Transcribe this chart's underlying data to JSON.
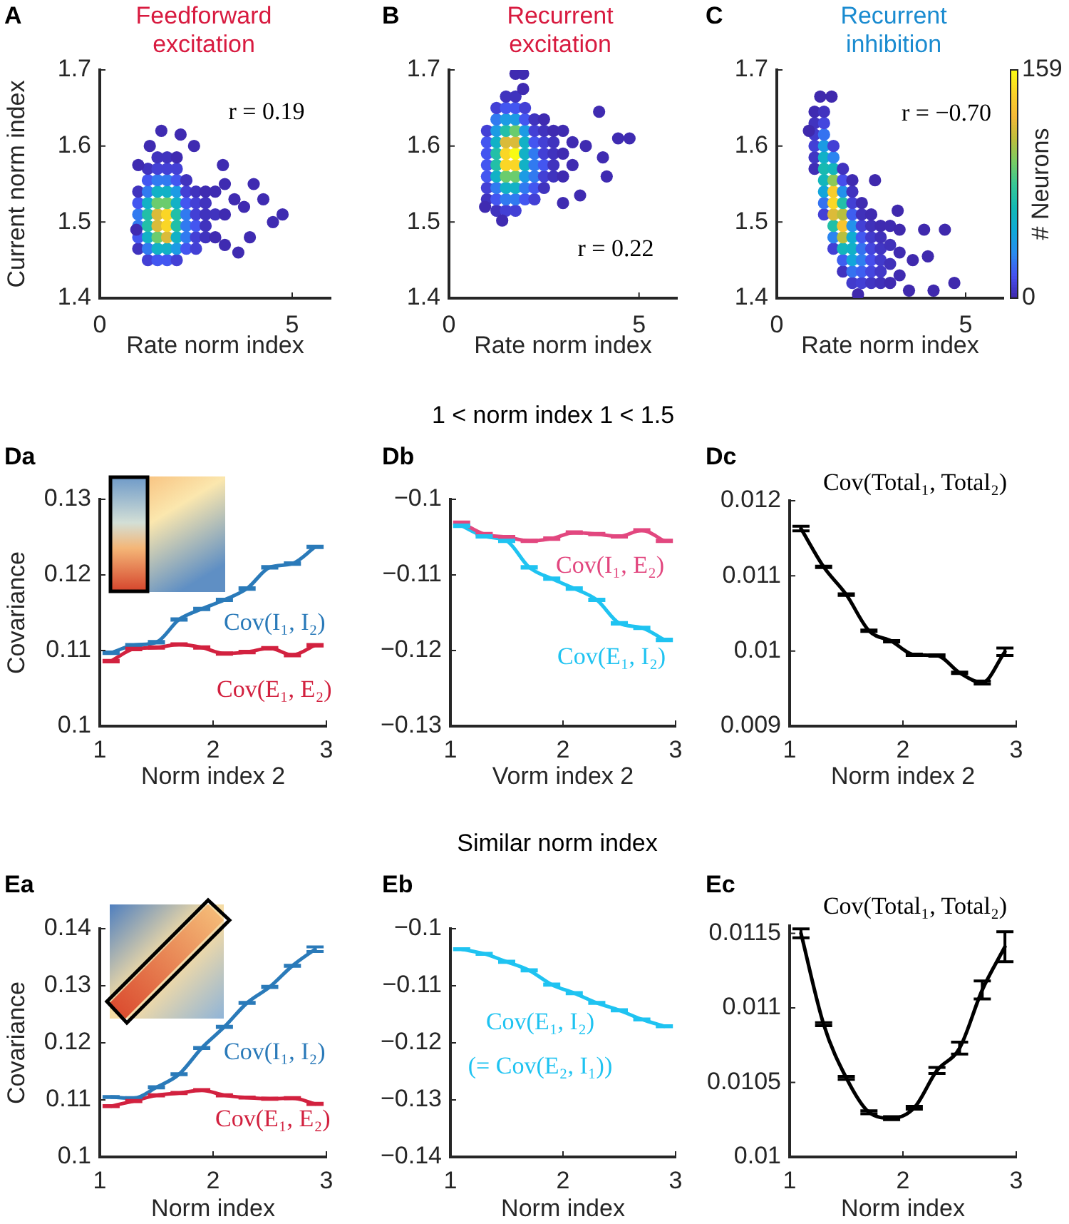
{
  "chart_data": [
    {
      "type": "scatter",
      "title": "Feedforward excitation",
      "xlabel": "Rate norm index",
      "ylabel": "Current norm index",
      "annotations": [
        "A",
        "r = 0.19"
      ],
      "marker": "circle",
      "x": [
        1,
        1,
        1,
        1,
        1,
        1,
        1.25,
        1.25,
        1.25,
        1.25,
        1.25,
        1.25,
        1.25,
        1.25,
        1.25,
        1.5,
        1.5,
        1.5,
        1.5,
        1.5,
        1.5,
        1.5,
        1.5,
        1.5,
        1.5,
        1.75,
        1.75,
        1.75,
        1.75,
        1.75,
        1.75,
        1.75,
        1.75,
        1.75,
        1.75,
        2,
        2,
        2,
        2,
        2,
        2,
        2,
        2,
        2,
        2,
        2.25,
        2.25,
        2.25,
        2.25,
        2.25,
        2.25,
        2.25,
        2.5,
        2.5,
        2.5,
        2.5,
        2.5,
        2.5,
        2.75,
        2.75,
        2.75,
        2.75,
        2.75,
        3,
        3,
        3,
        3.25,
        3.25,
        3.25,
        3.5,
        3.75,
        4,
        4.25,
        4.5,
        4.75,
        3.9,
        3.6,
        1.6,
        2.1,
        2.45,
        3.2,
        1,
        0.95,
        1.3
      ],
      "values": [
        1.465,
        1.48,
        1.495,
        1.51,
        1.525,
        1.54,
        1.45,
        1.465,
        1.48,
        1.495,
        1.51,
        1.525,
        1.54,
        1.555,
        1.57,
        1.45,
        1.465,
        1.48,
        1.495,
        1.51,
        1.525,
        1.54,
        1.555,
        1.57,
        1.585,
        1.45,
        1.465,
        1.48,
        1.495,
        1.51,
        1.525,
        1.54,
        1.555,
        1.57,
        1.585,
        1.45,
        1.465,
        1.48,
        1.495,
        1.51,
        1.525,
        1.54,
        1.555,
        1.57,
        1.585,
        1.465,
        1.48,
        1.495,
        1.51,
        1.525,
        1.54,
        1.555,
        1.465,
        1.48,
        1.495,
        1.51,
        1.525,
        1.54,
        1.48,
        1.495,
        1.51,
        1.525,
        1.54,
        1.48,
        1.51,
        1.54,
        1.47,
        1.51,
        1.55,
        1.53,
        1.52,
        1.55,
        1.53,
        1.5,
        1.51,
        1.48,
        1.46,
        1.62,
        1.615,
        1.6,
        1.575,
        1.575,
        1.49,
        1.6
      ],
      "colors": [
        "#4033be",
        "#4356f0",
        "#317af0",
        "#317af0",
        "#4356f0",
        "#4033be",
        "#4340d5",
        "#317af0",
        "#12b1c6",
        "#22bfa8",
        "#22bfa8",
        "#12b1c6",
        "#317af0",
        "#4356f0",
        "#4033be",
        "#4356f0",
        "#12b1c6",
        "#6bcc6e",
        "#dabb3a",
        "#dabb3a",
        "#6bcc6e",
        "#12b1c6",
        "#317af0",
        "#4340d5",
        "#4033be",
        "#4356f0",
        "#12b1c6",
        "#dabb3a",
        "#fad626",
        "#fad626",
        "#6bcc6e",
        "#12b1c6",
        "#317af0",
        "#4340d5",
        "#4033be",
        "#4340d5",
        "#1c9be4",
        "#12b1c6",
        "#22bfa8",
        "#22bfa8",
        "#12b1c6",
        "#1c9be4",
        "#4356f0",
        "#4340d5",
        "#3f2bb1",
        "#4356f0",
        "#317af0",
        "#317af0",
        "#317af0",
        "#4356f0",
        "#4340d5",
        "#4033be",
        "#4340d5",
        "#4340d5",
        "#4356f0",
        "#4340d5",
        "#4340d5",
        "#4033be",
        "#4033be",
        "#4033be",
        "#4033be",
        "#4033be",
        "#3f2bb1",
        "#3f2bb1",
        "#4033be",
        "#3f2bb1",
        "#3f2bb1",
        "#3f2bb1",
        "#3f2bb1",
        "#3f2bb1",
        "#3f2bb1",
        "#3f2bb1",
        "#3f2bb1",
        "#3f2bb1",
        "#3f2bb1",
        "#3f2bb1",
        "#3f2bb1",
        "#3f2bb1",
        "#3f2bb1",
        "#3f2bb1",
        "#3f2bb1",
        "#3f2bb1",
        "#3f2bb1",
        "#3f2bb1"
      ],
      "xlim": [
        0,
        6
      ],
      "xticks": [
        0,
        5
      ],
      "ylim": [
        1.4,
        1.7
      ],
      "yticks": [
        1.4,
        1.5,
        1.6,
        1.7
      ]
    },
    {
      "type": "scatter",
      "title": "Recurrent excitation",
      "xlabel": "Rate norm index",
      "annotations": [
        "B",
        "r = 0.22"
      ],
      "marker": "circle",
      "x": [
        1,
        1,
        1,
        1,
        1,
        1,
        1,
        1.25,
        1.25,
        1.25,
        1.25,
        1.25,
        1.25,
        1.25,
        1.25,
        1.25,
        1.25,
        1.5,
        1.5,
        1.5,
        1.5,
        1.5,
        1.5,
        1.5,
        1.5,
        1.5,
        1.5,
        1.5,
        1.75,
        1.75,
        1.75,
        1.75,
        1.75,
        1.75,
        1.75,
        1.75,
        1.75,
        1.75,
        1.75,
        2,
        2,
        2,
        2,
        2,
        2,
        2,
        2,
        2,
        2.25,
        2.25,
        2.25,
        2.25,
        2.25,
        2.25,
        2.25,
        2.25,
        2.5,
        2.5,
        2.5,
        2.5,
        2.5,
        2.5,
        2.5,
        2.75,
        2.75,
        2.75,
        2.75,
        2.75,
        3,
        3,
        3,
        3.25,
        3.25,
        1.75,
        1.95,
        1.95,
        3.95,
        4.45,
        4.75,
        4.05,
        4.15,
        3.45,
        3,
        0.95,
        1.4,
        3.6
      ],
      "values": [
        1.53,
        1.545,
        1.56,
        1.575,
        1.59,
        1.605,
        1.62,
        1.515,
        1.53,
        1.545,
        1.56,
        1.575,
        1.59,
        1.605,
        1.62,
        1.635,
        1.65,
        1.515,
        1.53,
        1.545,
        1.56,
        1.575,
        1.59,
        1.605,
        1.62,
        1.635,
        1.65,
        1.665,
        1.515,
        1.53,
        1.545,
        1.56,
        1.575,
        1.59,
        1.605,
        1.62,
        1.635,
        1.65,
        1.665,
        1.53,
        1.545,
        1.56,
        1.575,
        1.59,
        1.605,
        1.62,
        1.635,
        1.65,
        1.53,
        1.545,
        1.56,
        1.575,
        1.59,
        1.605,
        1.62,
        1.635,
        1.545,
        1.56,
        1.575,
        1.59,
        1.605,
        1.62,
        1.635,
        1.56,
        1.575,
        1.59,
        1.605,
        1.62,
        1.56,
        1.59,
        1.62,
        1.575,
        1.605,
        1.695,
        1.695,
        1.675,
        1.645,
        1.61,
        1.61,
        1.585,
        1.56,
        1.535,
        1.525,
        1.52,
        1.502,
        1.6
      ],
      "colors": [
        "#4033be",
        "#4340d5",
        "#4356f0",
        "#4356f0",
        "#4356f0",
        "#4356f0",
        "#4340d5",
        "#4033be",
        "#4356f0",
        "#317af0",
        "#12b1c6",
        "#22bfa8",
        "#22bfa8",
        "#12b1c6",
        "#1c9be4",
        "#317af0",
        "#4340d5",
        "#4340d5",
        "#317af0",
        "#12b1c6",
        "#6bcc6e",
        "#fad626",
        "#fad626",
        "#dabb3a",
        "#22bfa8",
        "#1c9be4",
        "#4356f0",
        "#4033be",
        "#4340d5",
        "#317af0",
        "#12b1c6",
        "#6bcc6e",
        "#fad626",
        "#f9fb14",
        "#dabb3a",
        "#6bcc6e",
        "#1c9be4",
        "#4356f0",
        "#4033be",
        "#4356f0",
        "#317af0",
        "#1c9be4",
        "#12b1c6",
        "#12b1c6",
        "#12b1c6",
        "#1c9be4",
        "#4356f0",
        "#4340d5",
        "#4340d5",
        "#4356f0",
        "#317af0",
        "#317af0",
        "#317af0",
        "#4356f0",
        "#4340d5",
        "#4033be",
        "#4033be",
        "#4340d5",
        "#4356f0",
        "#4340d5",
        "#4340d5",
        "#4033be",
        "#3f2bb1",
        "#4033be",
        "#4033be",
        "#4033be",
        "#4033be",
        "#3f2bb1",
        "#3f2bb1",
        "#3f2bb1",
        "#3f2bb1",
        "#3f2bb1",
        "#3f2bb1",
        "#3f2bb1",
        "#3f2bb1",
        "#3f2bb1",
        "#3f2bb1",
        "#3f2bb1",
        "#3f2bb1",
        "#3f2bb1",
        "#3f2bb1",
        "#3f2bb1",
        "#3f2bb1",
        "#3f2bb1",
        "#3f2bb1",
        "#3f2bb1"
      ],
      "xlim": [
        0,
        6
      ],
      "xticks": [
        0,
        5
      ],
      "ylim": [
        1.4,
        1.7
      ],
      "yticks": [
        1.4,
        1.5,
        1.6,
        1.7
      ]
    },
    {
      "type": "scatter",
      "title": "Recurrent inhibition",
      "xlabel": "Rate norm index",
      "annotations": [
        "C",
        "r = −0.70"
      ],
      "marker": "circle",
      "clim": [
        0,
        159
      ],
      "cticks": [
        0,
        159
      ],
      "clabel": "# Neurons",
      "x": [
        1,
        1,
        1,
        1,
        1,
        1,
        1.25,
        1.25,
        1.25,
        1.25,
        1.25,
        1.25,
        1.25,
        1.25,
        1.25,
        1.25,
        1.5,
        1.5,
        1.5,
        1.5,
        1.5,
        1.5,
        1.5,
        1.5,
        1.5,
        1.5,
        1.75,
        1.75,
        1.75,
        1.75,
        1.75,
        1.75,
        1.75,
        1.75,
        1.75,
        1.75,
        2,
        2,
        2,
        2,
        2,
        2,
        2,
        2,
        2,
        2,
        2.25,
        2.25,
        2.25,
        2.25,
        2.25,
        2.25,
        2.25,
        2.25,
        2.5,
        2.5,
        2.5,
        2.5,
        2.5,
        2.5,
        2.5,
        2.75,
        2.75,
        2.75,
        2.75,
        2.75,
        2.75,
        3,
        3,
        3,
        3,
        3.25,
        3.25,
        3.25,
        1.15,
        1.45,
        0.85,
        2.6,
        3.2,
        3.9,
        4.45,
        4.7,
        4.15,
        2.15,
        3.6,
        4,
        3.5
      ],
      "values": [
        1.57,
        1.585,
        1.6,
        1.615,
        1.63,
        1.645,
        1.51,
        1.525,
        1.54,
        1.555,
        1.57,
        1.585,
        1.6,
        1.615,
        1.63,
        1.645,
        1.465,
        1.48,
        1.495,
        1.51,
        1.525,
        1.54,
        1.555,
        1.57,
        1.585,
        1.6,
        1.435,
        1.45,
        1.465,
        1.48,
        1.495,
        1.51,
        1.525,
        1.54,
        1.555,
        1.57,
        1.42,
        1.435,
        1.45,
        1.465,
        1.48,
        1.495,
        1.51,
        1.525,
        1.54,
        1.555,
        1.42,
        1.435,
        1.45,
        1.465,
        1.48,
        1.495,
        1.51,
        1.525,
        1.42,
        1.435,
        1.45,
        1.465,
        1.48,
        1.495,
        1.51,
        1.42,
        1.435,
        1.45,
        1.465,
        1.48,
        1.495,
        1.42,
        1.445,
        1.47,
        1.495,
        1.43,
        1.46,
        1.49,
        1.665,
        1.665,
        1.62,
        1.555,
        1.515,
        1.49,
        1.49,
        1.42,
        1.41,
        1.405,
        1.45,
        1.455,
        1.41
      ],
      "cvalues": [
        3,
        6,
        10,
        8,
        5,
        2,
        10,
        25,
        45,
        60,
        65,
        55,
        40,
        25,
        12,
        5,
        10,
        30,
        70,
        120,
        145,
        140,
        100,
        60,
        30,
        10,
        5,
        20,
        60,
        110,
        135,
        110,
        70,
        35,
        15,
        5,
        8,
        25,
        45,
        55,
        50,
        35,
        20,
        10,
        5,
        2,
        10,
        20,
        28,
        25,
        18,
        10,
        4,
        2,
        6,
        12,
        15,
        12,
        8,
        4,
        2,
        4,
        7,
        8,
        6,
        4,
        2,
        2,
        4,
        4,
        2,
        2,
        2,
        1,
        1,
        1,
        1,
        1,
        1,
        1,
        1,
        1,
        1,
        1,
        1,
        1,
        1
      ],
      "xlim": [
        0,
        6
      ],
      "xticks": [
        0,
        5
      ],
      "ylim": [
        1.4,
        1.7
      ],
      "yticks": [
        1.4,
        1.5,
        1.6,
        1.7
      ]
    },
    {
      "type": "line",
      "xlabel": "Norm index 2",
      "ylabel": "Covariance",
      "annotations": [
        "Da"
      ],
      "x": [
        1.1,
        1.3,
        1.5,
        1.7,
        1.9,
        2.1,
        2.3,
        2.5,
        2.7,
        2.9
      ],
      "series": [
        {
          "name": "Cov(I₁, I₂)",
          "color": "#2a7ab9",
          "values": [
            0.1097,
            0.1107,
            0.1111,
            0.1141,
            0.1155,
            0.1167,
            0.1182,
            0.121,
            0.1215,
            0.1237
          ],
          "errors": [
            0.0001,
            0.0001,
            0.0001,
            0.0001,
            0.0001,
            0.0001,
            0.0001,
            0.0001,
            0.0001,
            0.0001
          ]
        },
        {
          "name": "Cov(E₁, E₂)",
          "color": "#d2213f",
          "values": [
            0.1086,
            0.1102,
            0.1104,
            0.1108,
            0.1104,
            0.1096,
            0.1098,
            0.1103,
            0.1094,
            0.1107
          ],
          "errors": [
            0.0001,
            0.0001,
            0.0001,
            0.0001,
            0.0001,
            0.0001,
            0.0001,
            0.0001,
            0.0001,
            0.0001
          ]
        }
      ],
      "xlim": [
        1,
        3
      ],
      "xticks": [
        1,
        2,
        3
      ],
      "ylim": [
        0.1,
        0.13
      ],
      "yticks": [
        0.1,
        0.11,
        0.12,
        0.13
      ]
    },
    {
      "type": "line",
      "title": "1 < norm index 1 < 1.5",
      "xlabel": "Vorm index 2",
      "annotations": [
        "Db"
      ],
      "x": [
        1.1,
        1.3,
        1.5,
        1.7,
        1.9,
        2.1,
        2.3,
        2.5,
        2.7,
        2.9
      ],
      "series": [
        {
          "name": "Cov(I₁, E₂)",
          "color": "#e2477f",
          "values": [
            -0.1031,
            -0.1046,
            -0.105,
            -0.1055,
            -0.1052,
            -0.1044,
            -0.1046,
            -0.1049,
            -0.1041,
            -0.1055
          ],
          "errors": [
            0.0001,
            0.0001,
            0.0001,
            0.0001,
            0.0001,
            0.0001,
            0.0001,
            0.0001,
            0.0001,
            0.0001
          ]
        },
        {
          "name": "Cov(E₁, I₂)",
          "color": "#1fc3f1",
          "values": [
            -0.1035,
            -0.1049,
            -0.1055,
            -0.109,
            -0.1105,
            -0.1118,
            -0.1133,
            -0.1164,
            -0.117,
            -0.1186
          ],
          "errors": [
            0.0001,
            0.0001,
            0.0001,
            0.0001,
            0.0001,
            0.0001,
            0.0001,
            0.0001,
            0.0001,
            0.0001
          ]
        }
      ],
      "xlim": [
        1,
        3
      ],
      "xticks": [
        1,
        2,
        3
      ],
      "ylim": [
        -0.13,
        -0.1
      ],
      "yticks": [
        {
          "value": -0.13,
          "label": "−0.13"
        },
        {
          "value": -0.12,
          "label": "−0.12"
        },
        {
          "value": -0.11,
          "label": "−0.11"
        },
        {
          "value": -0.1,
          "label": "−0.1"
        }
      ]
    },
    {
      "type": "line",
      "xlabel": "Norm index 2",
      "annotations": [
        "Dc"
      ],
      "x": [
        1.1,
        1.3,
        1.5,
        1.7,
        1.9,
        2.1,
        2.3,
        2.5,
        2.7,
        2.9
      ],
      "series": [
        {
          "name": "Cov(Total₁, Total₂)",
          "color": "#000000",
          "values": [
            0.01163,
            0.01112,
            0.01075,
            0.01027,
            0.01013,
            0.00995,
            0.00994,
            0.00971,
            0.00958,
            0.00999
          ],
          "errors": [
            3e-05,
            1e-05,
            1e-05,
            1e-05,
            1e-05,
            1e-05,
            1e-05,
            1e-05,
            2e-05,
            5e-05
          ]
        }
      ],
      "xlim": [
        1,
        3
      ],
      "xticks": [
        1,
        2,
        3
      ],
      "ylim": [
        0.009,
        0.012
      ],
      "yticks": [
        0.009,
        0.01,
        0.011,
        0.012
      ]
    },
    {
      "type": "line",
      "xlabel": "Norm index",
      "ylabel": "Covariance",
      "annotations": [
        "Ea"
      ],
      "x": [
        1.1,
        1.3,
        1.5,
        1.7,
        1.9,
        2.1,
        2.3,
        2.5,
        2.7,
        2.9
      ],
      "series": [
        {
          "name": "Cov(I₁, I₂)",
          "color": "#2a7ab9",
          "values": [
            0.1105,
            0.1103,
            0.1122,
            0.1145,
            0.1191,
            0.1228,
            0.127,
            0.1298,
            0.1335,
            0.1364
          ],
          "errors": [
            0.0001,
            0.0001,
            0.0001,
            0.0001,
            0.0001,
            0.0001,
            0.0001,
            0.0001,
            0.0001,
            0.0004
          ]
        },
        {
          "name": "Cov(E₁, E₂)",
          "color": "#d2213f",
          "values": [
            0.1089,
            0.1098,
            0.1108,
            0.1112,
            0.1117,
            0.1108,
            0.1104,
            0.1102,
            0.1103,
            0.1093
          ],
          "errors": [
            0.0001,
            0.0001,
            0.0001,
            0.0001,
            0.0001,
            0.0001,
            0.0001,
            0.0001,
            0.0001,
            0.0001
          ]
        }
      ],
      "xlim": [
        1,
        3
      ],
      "xticks": [
        1,
        2,
        3
      ],
      "ylim": [
        0.1,
        0.14
      ],
      "yticks": [
        0.1,
        0.11,
        0.12,
        0.13,
        0.14
      ]
    },
    {
      "type": "line",
      "title": "Similar norm index",
      "xlabel": "Norm index",
      "annotations": [
        "Eb",
        "(= Cov(E₂, I₁))"
      ],
      "x": [
        1.1,
        1.3,
        1.5,
        1.7,
        1.9,
        2.1,
        2.3,
        2.5,
        2.7,
        2.9
      ],
      "series": [
        {
          "name": "Cov(E₁, I₂)",
          "color": "#1fc3f1",
          "values": [
            -0.1036,
            -0.1044,
            -0.1058,
            -0.1073,
            -0.1098,
            -0.1113,
            -0.113,
            -0.1143,
            -0.1159,
            -0.1171
          ],
          "errors": [
            0.0001,
            0.0001,
            0.0001,
            0.0001,
            0.0001,
            0.0001,
            0.0001,
            0.0001,
            0.0001,
            0.0001
          ]
        }
      ],
      "xlim": [
        1,
        3
      ],
      "xticks": [
        1,
        2,
        3
      ],
      "ylim": [
        -0.14,
        -0.1
      ],
      "yticks": [
        {
          "value": -0.14,
          "label": "−0.14"
        },
        {
          "value": -0.13,
          "label": "−0.13"
        },
        {
          "value": -0.12,
          "label": "−0.12"
        },
        {
          "value": -0.11,
          "label": "−0.11"
        },
        {
          "value": -0.1,
          "label": "−0.1"
        }
      ]
    },
    {
      "type": "line",
      "xlabel": "Norm index",
      "annotations": [
        "Ec"
      ],
      "x": [
        1.1,
        1.3,
        1.5,
        1.7,
        1.9,
        2.1,
        2.3,
        2.5,
        2.7,
        2.9
      ],
      "series": [
        {
          "name": "Cov(Total₁, Total₂)",
          "color": "#000000",
          "values": [
            0.0115,
            0.01089,
            0.01053,
            0.0103,
            0.01026,
            0.01033,
            0.01058,
            0.01073,
            0.01112,
            0.01141
          ],
          "errors": [
            3e-05,
            1e-05,
            1e-05,
            1e-05,
            1e-05,
            1e-05,
            2e-05,
            4e-05,
            6e-05,
            0.0001
          ]
        }
      ],
      "xlim": [
        1,
        3
      ],
      "xticks": [
        1,
        2,
        3
      ],
      "ylim": [
        0.01,
        0.01155
      ],
      "yticks": [
        0.01,
        0.0105,
        0.011,
        0.0115
      ]
    }
  ]
}
